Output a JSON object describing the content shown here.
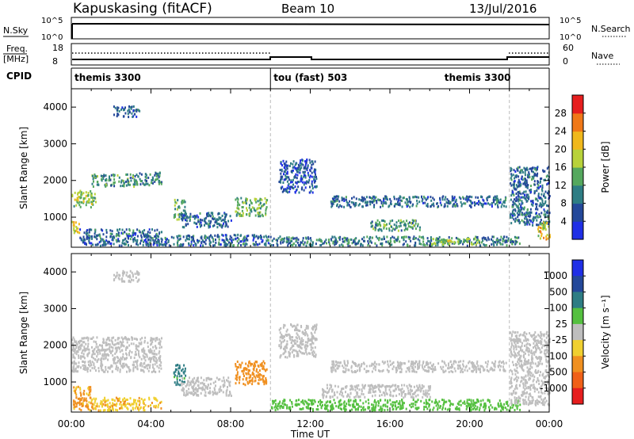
{
  "header": {
    "site": "Kapuskasing (fitACF)",
    "beam": "Beam 10",
    "date": "13/Jul/2016"
  },
  "aux_panels": {
    "nsky_label": "N.Sky",
    "nsky_ticks": [
      "10^5",
      "10^0"
    ],
    "nsearch_label": "N.Search",
    "nsearch_ticks": [
      "10^5",
      "10^0"
    ],
    "freq_label": "Freq.",
    "freq_unit": "[MHz]",
    "freq_ticks": [
      "18",
      "8"
    ],
    "nave_label": "Nave",
    "nave_ticks": [
      "60",
      "0"
    ],
    "cpid_label": "CPID",
    "cpid_segments": [
      {
        "label": "themis 3300",
        "start": 0,
        "end": 10
      },
      {
        "label": "tou (fast) 503",
        "start": 10,
        "end": 22
      },
      {
        "label": "themis 3300",
        "start": 22,
        "end": 24
      }
    ]
  },
  "chart_data": [
    {
      "type": "heatmap",
      "title": "",
      "xlabel": "Time UT",
      "ylabel": "Slant Range [km]",
      "x_range": [
        0,
        24
      ],
      "x_ticks": [
        "00:00",
        "04:00",
        "08:00",
        "12:00",
        "16:00",
        "20:00",
        "00:00"
      ],
      "y_range": [
        180,
        4500
      ],
      "y_ticks": [
        1000,
        2000,
        3000,
        4000
      ],
      "colorbar": {
        "label": "Power [dB]",
        "ticks": [
          "4",
          "8",
          "12",
          "16",
          "20",
          "24",
          "28"
        ],
        "colors": [
          "#1f2fe6",
          "#24489a",
          "#2e7d84",
          "#55a85e",
          "#b8d23a",
          "#f0b81c",
          "#f07818",
          "#e61e1e"
        ]
      },
      "regions": [
        {
          "t0": 0.0,
          "t1": 1.2,
          "r0": 1300,
          "r1": 1750,
          "level": 16
        },
        {
          "t0": 1.0,
          "t1": 3.3,
          "r0": 1850,
          "r1": 2200,
          "level": 12
        },
        {
          "t0": 3.3,
          "t1": 4.5,
          "r0": 1900,
          "r1": 2250,
          "level": 10
        },
        {
          "t0": 0.0,
          "t1": 0.4,
          "r0": 550,
          "r1": 900,
          "level": 20
        },
        {
          "t0": 0.4,
          "t1": 4.5,
          "r0": 250,
          "r1": 700,
          "level": 8
        },
        {
          "t0": 2.1,
          "t1": 3.4,
          "r0": 3750,
          "r1": 4050,
          "level": 8
        },
        {
          "t0": 5.1,
          "t1": 5.7,
          "r0": 950,
          "r1": 1500,
          "level": 14
        },
        {
          "t0": 5.5,
          "t1": 8.0,
          "r0": 750,
          "r1": 1150,
          "level": 8
        },
        {
          "t0": 8.2,
          "t1": 9.8,
          "r0": 1050,
          "r1": 1550,
          "level": 14
        },
        {
          "t0": 3.7,
          "t1": 10.0,
          "r0": 250,
          "r1": 550,
          "level": 8
        },
        {
          "t0": 10.4,
          "t1": 12.3,
          "r0": 1700,
          "r1": 2600,
          "level": 6
        },
        {
          "t0": 13.0,
          "t1": 21.8,
          "r0": 1300,
          "r1": 1600,
          "level": 8
        },
        {
          "t0": 15.0,
          "t1": 17.5,
          "r0": 650,
          "r1": 950,
          "level": 12
        },
        {
          "t0": 10.0,
          "t1": 22.5,
          "r0": 250,
          "r1": 500,
          "level": 10
        },
        {
          "t0": 18.0,
          "t1": 20.5,
          "r0": 280,
          "r1": 450,
          "level": 16
        },
        {
          "t0": 22.0,
          "t1": 24.0,
          "r0": 800,
          "r1": 2400,
          "level": 8
        },
        {
          "t0": 23.4,
          "t1": 24.0,
          "r0": 400,
          "r1": 900,
          "level": 20
        }
      ]
    },
    {
      "type": "heatmap",
      "title": "",
      "xlabel": "Time UT",
      "ylabel": "Slant Range [km]",
      "x_range": [
        0,
        24
      ],
      "x_ticks": [
        "00:00",
        "04:00",
        "08:00",
        "12:00",
        "16:00",
        "20:00",
        "00:00"
      ],
      "y_range": [
        180,
        4500
      ],
      "y_ticks": [
        1000,
        2000,
        3000,
        4000
      ],
      "colorbar": {
        "label": "Velocity [m s⁻¹]",
        "ticks": [
          "1000",
          "500",
          "100",
          "25",
          "-25",
          "-100",
          "-500",
          "-1000"
        ],
        "colors": [
          "#1f2fe6",
          "#24489a",
          "#2e7d84",
          "#55c040",
          "#bebebe",
          "#f0d030",
          "#f09020",
          "#f06018",
          "#e61e1e"
        ]
      },
      "regions": [
        {
          "t0": 0.0,
          "t1": 4.5,
          "r0": 1300,
          "r1": 2250,
          "level": 0
        },
        {
          "t0": 0.0,
          "t1": 1.0,
          "r0": 250,
          "r1": 900,
          "level": -150
        },
        {
          "t0": 1.0,
          "t1": 4.5,
          "r0": 250,
          "r1": 600,
          "level": -80
        },
        {
          "t0": 2.1,
          "t1": 3.4,
          "r0": 3750,
          "r1": 4050,
          "level": 0
        },
        {
          "t0": 5.1,
          "t1": 5.7,
          "r0": 950,
          "r1": 1500,
          "level": 150
        },
        {
          "t0": 5.5,
          "t1": 8.0,
          "r0": 650,
          "r1": 1150,
          "level": 0
        },
        {
          "t0": 8.2,
          "t1": 9.8,
          "r0": 950,
          "r1": 1600,
          "level": -300
        },
        {
          "t0": 10.4,
          "t1": 12.3,
          "r0": 1700,
          "r1": 2600,
          "level": 0
        },
        {
          "t0": 13.0,
          "t1": 21.8,
          "r0": 1300,
          "r1": 1600,
          "level": 0
        },
        {
          "t0": 12.5,
          "t1": 18.0,
          "r0": 600,
          "r1": 950,
          "level": 0
        },
        {
          "t0": 10.0,
          "t1": 22.5,
          "r0": 250,
          "r1": 550,
          "level": 60
        },
        {
          "t0": 22.0,
          "t1": 24.0,
          "r0": 400,
          "r1": 2400,
          "level": 0
        }
      ]
    }
  ]
}
